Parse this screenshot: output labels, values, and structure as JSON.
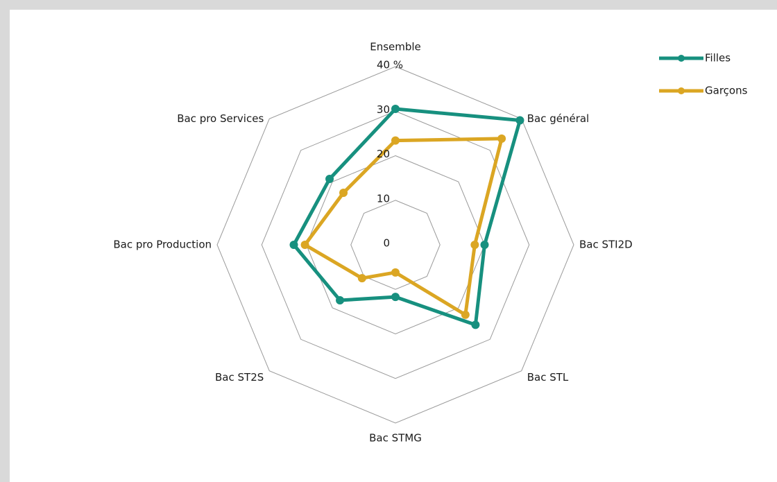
{
  "chart_data": {
    "type": "radar",
    "categories": [
      "Ensemble",
      "Bac général",
      "Bac STI2D",
      "Bac STL",
      "Bac STMG",
      "Bac ST2S",
      "Bac pro Production",
      "Bac pro Services"
    ],
    "series": [
      {
        "name": "Filles",
        "color": "#17907f",
        "values": [
          30.5,
          39.5,
          20,
          25.4,
          11.7,
          17.6,
          22.8,
          20.9
        ]
      },
      {
        "name": "Garçons",
        "color": "#dba623",
        "values": [
          23.4,
          33.7,
          17.8,
          22.2,
          6.2,
          10.6,
          20.3,
          16.5
        ]
      }
    ],
    "ylim": [
      0,
      40
    ],
    "yticks": [
      0,
      10,
      20,
      30,
      {
        "value": 40,
        "label": "40 %"
      }
    ],
    "grid": true,
    "legend": "top-right"
  }
}
